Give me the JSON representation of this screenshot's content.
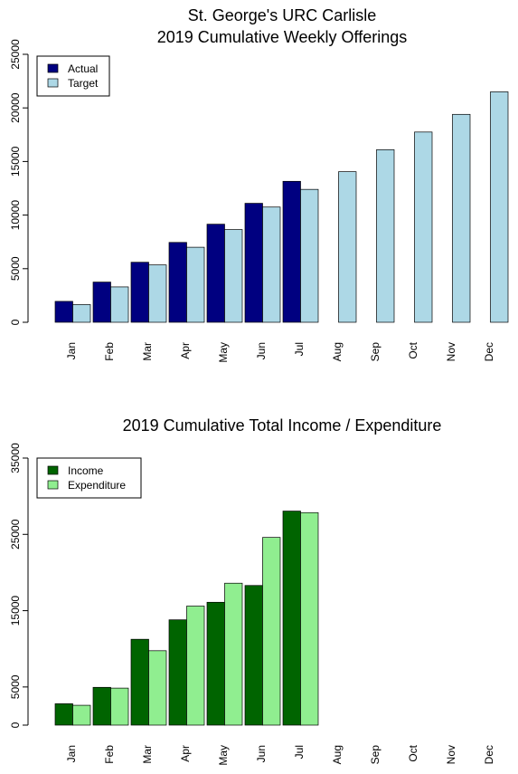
{
  "chart_data": [
    {
      "type": "bar",
      "title": "St. George's URC Carlisle",
      "subtitle": "2019 Cumulative Weekly Offerings",
      "xlabel": "",
      "ylabel": "",
      "categories": [
        "Jan",
        "Feb",
        "Mar",
        "Apr",
        "May",
        "Jun",
        "Jul",
        "Aug",
        "Sep",
        "Oct",
        "Nov",
        "Dec"
      ],
      "series": [
        {
          "name": "Actual",
          "color": "#000080",
          "values": [
            1950,
            3750,
            5600,
            7450,
            9150,
            11100,
            13150,
            0,
            0,
            0,
            0,
            0
          ]
        },
        {
          "name": "Target",
          "color": "#add8e6",
          "values": [
            1650,
            3300,
            5350,
            7000,
            8650,
            10750,
            12400,
            14050,
            16100,
            17750,
            19400,
            21500
          ]
        }
      ],
      "yticks": [
        0,
        5000,
        10000,
        15000,
        20000,
        25000
      ],
      "ylim": [
        0,
        25000
      ],
      "legend": "top-left",
      "grid": false
    },
    {
      "type": "bar",
      "title": "2019 Cumulative Total Income / Expenditure",
      "xlabel": "",
      "ylabel": "",
      "categories": [
        "Jan",
        "Feb",
        "Mar",
        "Apr",
        "May",
        "Jun",
        "Jul",
        "Aug",
        "Sep",
        "Oct",
        "Nov",
        "Dec"
      ],
      "series": [
        {
          "name": "Income",
          "color": "#006400",
          "values": [
            2800,
            4950,
            11250,
            13800,
            16100,
            18300,
            28050,
            0,
            0,
            0,
            0,
            0
          ]
        },
        {
          "name": "Expenditure",
          "color": "#90ee90",
          "values": [
            2600,
            4850,
            9750,
            15600,
            18600,
            24600,
            27850,
            0,
            0,
            0,
            0,
            0
          ]
        }
      ],
      "yticks": [
        0,
        5000,
        15000,
        25000,
        35000
      ],
      "ylim": [
        0,
        35000
      ],
      "legend": "top-left",
      "grid": false
    }
  ]
}
